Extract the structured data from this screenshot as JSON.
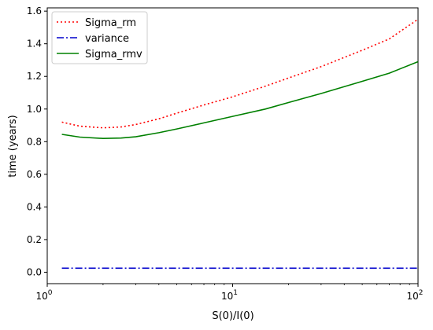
{
  "chart_data": {
    "type": "line",
    "xlabel": "S(0)/I(0)",
    "ylabel": "time (years)",
    "xscale": "log",
    "xlim": [
      1,
      100
    ],
    "ylim": [
      -0.07,
      1.62
    ],
    "x_ticks": [
      {
        "value": 1,
        "base": "10",
        "exp": "0"
      },
      {
        "value": 10,
        "base": "10",
        "exp": "1"
      },
      {
        "value": 100,
        "base": "10",
        "exp": "2"
      }
    ],
    "y_ticks": [
      "0.0",
      "0.2",
      "0.4",
      "0.6",
      "0.8",
      "1.0",
      "1.2",
      "1.4",
      "1.6"
    ],
    "legend_position": "top-left",
    "grid": false,
    "series": [
      {
        "name": "Sigma_rm",
        "color": "#ff0000",
        "style": "dotted",
        "x": [
          1.2,
          1.5,
          2.0,
          2.5,
          3.0,
          4.0,
          5.0,
          7.0,
          10.0,
          15.0,
          20.0,
          30.0,
          50.0,
          70.0,
          100.0
        ],
        "y": [
          0.92,
          0.895,
          0.885,
          0.89,
          0.905,
          0.94,
          0.975,
          1.025,
          1.075,
          1.14,
          1.19,
          1.26,
          1.36,
          1.43,
          1.55
        ]
      },
      {
        "name": "variance",
        "color": "#0000cc",
        "style": "dashdot",
        "x": [
          1.2,
          100.0
        ],
        "y": [
          0.025,
          0.025
        ]
      },
      {
        "name": "Sigma_rmv",
        "color": "#008000",
        "style": "solid",
        "x": [
          1.2,
          1.5,
          2.0,
          2.5,
          3.0,
          4.0,
          5.0,
          7.0,
          10.0,
          15.0,
          20.0,
          30.0,
          50.0,
          70.0,
          100.0
        ],
        "y": [
          0.845,
          0.828,
          0.82,
          0.822,
          0.83,
          0.855,
          0.878,
          0.915,
          0.955,
          1.0,
          1.04,
          1.095,
          1.17,
          1.22,
          1.29
        ]
      }
    ]
  }
}
